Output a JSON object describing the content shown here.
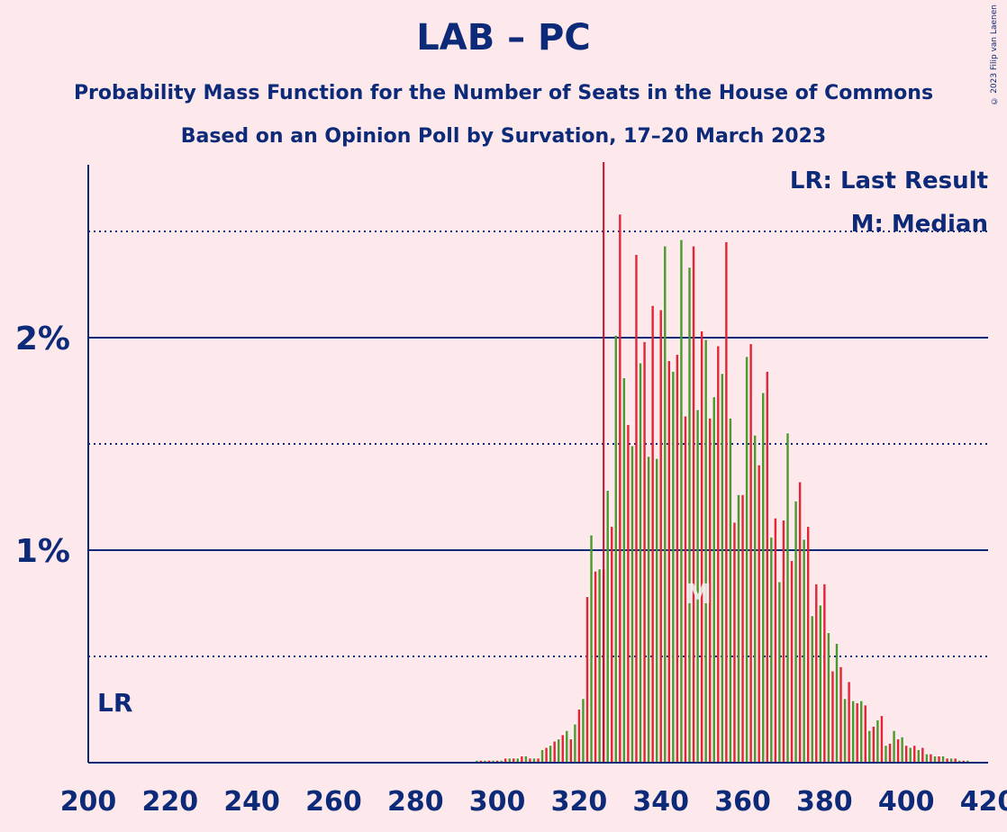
{
  "title": "LAB – PC",
  "subtitle": "Probability Mass Function for the Number of Seats in the House of Commons",
  "subtitle2": "Based on an Opinion Poll by Survation, 17–20 March 2023",
  "copyright": "© 2023 Filip van Laenen",
  "legend": {
    "last_result": "LR: Last Result",
    "median": "M: Median"
  },
  "colors": {
    "background": "#fde8ec",
    "axis": "#0c2a78",
    "red": "#e32636",
    "green": "#4a9a2e",
    "last_result_line": "#c8102e"
  },
  "chart_data": {
    "type": "bar",
    "xlabel": "",
    "ylabel": "",
    "xlim": [
      200,
      420
    ],
    "ylim": [
      0,
      2.8
    ],
    "x_ticks": [
      200,
      220,
      240,
      260,
      280,
      300,
      320,
      340,
      360,
      380,
      400,
      420
    ],
    "x_tick_labels": [
      "200",
      "220",
      "240",
      "260",
      "280",
      "300",
      "320",
      "340",
      "360",
      "380",
      "400",
      "420"
    ],
    "y_ticks": [
      1,
      2
    ],
    "y_tick_labels": [
      "1%",
      "2%"
    ],
    "y_dotted_lines": [
      0.5,
      1.5,
      2.5
    ],
    "last_result": {
      "x": 326,
      "label": "LR"
    },
    "median": {
      "x": 348,
      "label": "M"
    },
    "legend_position": "top-right",
    "series": [
      {
        "x": [
          295,
          296,
          297,
          298,
          299,
          300,
          301,
          302,
          303,
          304,
          305,
          306,
          307,
          308,
          309,
          310,
          311,
          312,
          313,
          314,
          315,
          316,
          317,
          318,
          319,
          320,
          321,
          322,
          323,
          324,
          325,
          326,
          327,
          328,
          329,
          330,
          331,
          332,
          333,
          334,
          335,
          336,
          337,
          338,
          339,
          340,
          341,
          342,
          343,
          344,
          345,
          346,
          347,
          348,
          349,
          350,
          351,
          352,
          353,
          354,
          355,
          356,
          357,
          358,
          359,
          360,
          361,
          362,
          363,
          364,
          365,
          366,
          367,
          368,
          369,
          370,
          371,
          372,
          373,
          374,
          375,
          376,
          377,
          378,
          379,
          380,
          381,
          382,
          383,
          384,
          385,
          386,
          387,
          388,
          389,
          390,
          391,
          392,
          393,
          394,
          395,
          396,
          397,
          398,
          399,
          400,
          401,
          402,
          403,
          404,
          405,
          406,
          407,
          408,
          409,
          410,
          411,
          412,
          413,
          414,
          415
        ],
        "values": [
          0.01,
          0.01,
          0.01,
          0.01,
          0.01,
          0.01,
          0.01,
          0.02,
          0.02,
          0.02,
          0.02,
          0.03,
          0.03,
          0.02,
          0.02,
          0.02,
          0.06,
          0.07,
          0.08,
          0.1,
          0.11,
          0.13,
          0.15,
          0.11,
          0.18,
          0.25,
          0.3,
          0.78,
          1.07,
          0.9,
          0.91,
          0.91,
          1.28,
          1.11,
          2.01,
          2.58,
          1.81,
          1.59,
          1.49,
          2.39,
          1.88,
          1.98,
          1.44,
          2.15,
          1.43,
          2.13,
          2.43,
          1.89,
          1.84,
          1.92,
          2.46,
          1.63,
          2.33,
          2.43,
          1.66,
          2.03,
          1.99,
          1.62,
          1.72,
          1.96,
          1.83,
          2.45,
          1.62,
          1.13,
          1.26,
          1.26,
          1.91,
          1.97,
          1.54,
          1.4,
          1.74,
          1.84,
          1.06,
          1.15,
          0.85,
          1.14,
          1.55,
          0.95,
          1.23,
          1.32,
          1.05,
          1.11,
          0.69,
          0.84,
          0.74,
          0.84,
          0.61,
          0.43,
          0.56,
          0.45,
          0.3,
          0.38,
          0.29,
          0.28,
          0.29,
          0.27,
          0.15,
          0.17,
          0.2,
          0.22,
          0.08,
          0.09,
          0.15,
          0.11,
          0.12,
          0.08,
          0.07,
          0.08,
          0.06,
          0.07,
          0.04,
          0.04,
          0.03,
          0.03,
          0.03,
          0.02,
          0.02,
          0.02,
          0.01,
          0.01,
          0.01
        ]
      }
    ]
  }
}
